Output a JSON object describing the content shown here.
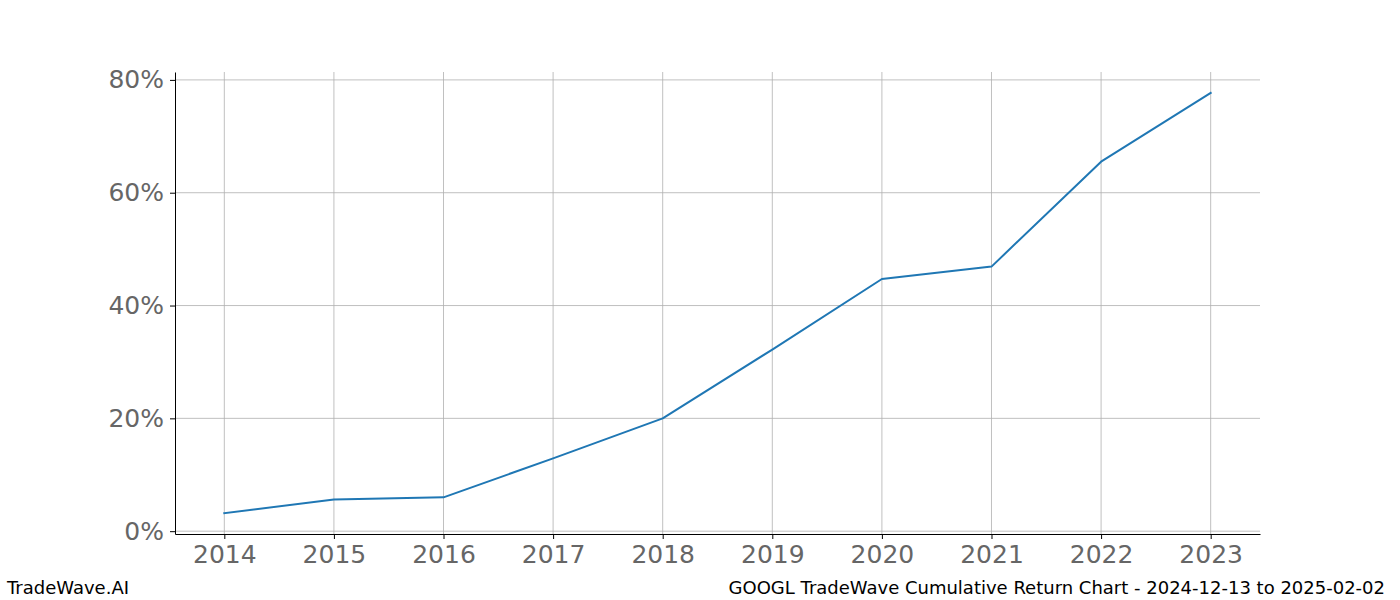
{
  "chart_data": {
    "type": "line",
    "title": "GOOGL TradeWave Cumulative Return Chart - 2024-12-13 to 2025-02-02",
    "annotations": [
      "TradeWave.AI"
    ],
    "x": [
      2014,
      2015,
      2016,
      2017,
      2018,
      2019,
      2020,
      2021,
      2022,
      2023
    ],
    "values": [
      3.2,
      5.6,
      6.0,
      12.9,
      20.0,
      32.2,
      44.7,
      46.9,
      65.5,
      77.7
    ],
    "color": "#1f77b4",
    "xlim": [
      2013.55,
      2023.45
    ],
    "xticks": [
      2014,
      2015,
      2016,
      2017,
      2018,
      2019,
      2020,
      2021,
      2022,
      2023
    ],
    "ylim": [
      -0.5,
      81.4
    ],
    "yticks": [
      {
        "value": 0,
        "label": "0%"
      },
      {
        "value": 20,
        "label": "20%"
      },
      {
        "value": 40,
        "label": "40%"
      },
      {
        "value": 60,
        "label": "60%"
      },
      {
        "value": 80,
        "label": "80%"
      }
    ],
    "grid": true
  }
}
